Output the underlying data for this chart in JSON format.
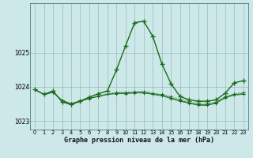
{
  "title": "Graphe pression niveau de la mer (hPa)",
  "bg_color": "#cce8e8",
  "grid_color": "#99bbbb",
  "line_color": "#1a6b1a",
  "xlim_min": -0.5,
  "xlim_max": 23.5,
  "ylim_min": 1022.75,
  "ylim_max": 1026.45,
  "yticks": [
    1023,
    1024,
    1025
  ],
  "xtick_labels": [
    "0",
    "1",
    "2",
    "3",
    "4",
    "5",
    "6",
    "7",
    "8",
    "9",
    "10",
    "11",
    "12",
    "13",
    "14",
    "15",
    "16",
    "17",
    "18",
    "19",
    "20",
    "21",
    "22",
    "23"
  ],
  "series_main": [
    1023.92,
    1023.78,
    1023.88,
    1023.56,
    1023.48,
    1023.58,
    1023.7,
    1023.8,
    1023.88,
    1024.5,
    1025.2,
    1025.88,
    1025.92,
    1025.48,
    1024.68,
    1024.1,
    1023.72,
    1023.62,
    1023.58,
    1023.58,
    1023.62,
    1023.82,
    1024.12,
    1024.18
  ],
  "series_flat1": [
    1023.92,
    1023.78,
    1023.84,
    1023.6,
    1023.52,
    1023.6,
    1023.68,
    1023.74,
    1023.8,
    1023.84,
    1023.84,
    1023.86,
    1023.87,
    1023.82,
    1023.78,
    1023.72,
    1023.64,
    1023.58,
    1023.52,
    1023.52,
    1023.56,
    1023.72,
    1023.8,
    1023.84
  ],
  "series_flat2": [
    1023.92,
    1023.78,
    1023.84,
    1023.6,
    1023.5,
    1023.58,
    1023.66,
    1023.72,
    1023.78,
    1023.82,
    1023.82,
    1023.84,
    1023.85,
    1023.8,
    1023.76,
    1023.68,
    1023.6,
    1023.54,
    1023.48,
    1023.48,
    1023.54,
    1023.7,
    1023.78,
    1023.8
  ],
  "series_flat3": [
    1023.92,
    1023.78,
    1023.84,
    1023.6,
    1023.5,
    1023.58,
    1023.66,
    1023.72,
    1023.78,
    1023.8,
    1023.8,
    1023.82,
    1023.82,
    1023.78,
    1023.74,
    1023.66,
    1023.58,
    1023.52,
    1023.46,
    1023.46,
    1023.52,
    1023.68,
    1023.76,
    1023.78
  ]
}
